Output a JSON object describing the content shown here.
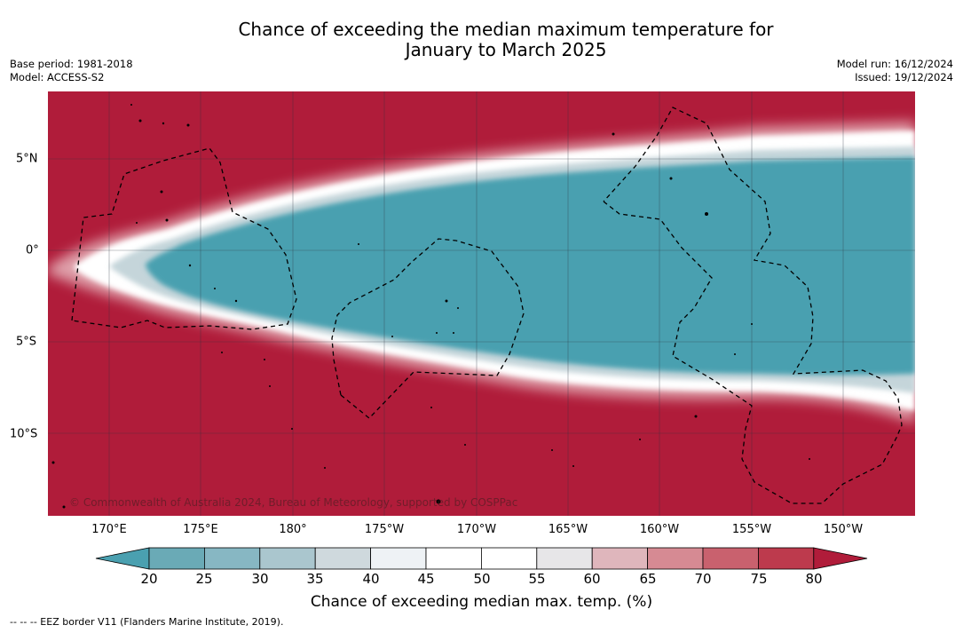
{
  "title": {
    "line1": "Chance of exceeding the median maximum temperature for",
    "line2": "January to March 2025"
  },
  "meta": {
    "base_period": "Base period: 1981-2018",
    "model": "Model: ACCESS-S2",
    "model_run": "Model run: 16/12/2024",
    "issued": "Issued: 19/12/2024"
  },
  "map": {
    "longitude_ticks": [
      "170°E",
      "175°E",
      "180°",
      "175°W",
      "170°W",
      "165°W",
      "160°W",
      "155°W",
      "150°W"
    ],
    "latitude_ticks": [
      "5°N",
      "0°",
      "5°S",
      "10°S"
    ],
    "copyright": "© Commonwealth of Australia 2024, Bureau of Meteorology, supported by COSPPac",
    "colors": {
      "warm": "#b01c3a",
      "cool": "#4aa0b0",
      "border": "#000000"
    }
  },
  "colorbar": {
    "labels": [
      "20",
      "25",
      "30",
      "35",
      "40",
      "45",
      "50",
      "55",
      "60",
      "65",
      "70",
      "75",
      "80"
    ],
    "colors": [
      "#4aa0b0",
      "#6aaab6",
      "#87b7c3",
      "#aac6ce",
      "#cfd9dd",
      "#eef2f5",
      "#ffffff",
      "#ffffff",
      "#e7e6e8",
      "#dfb6bc",
      "#d68a93",
      "#c9616e",
      "#bd3a4d",
      "#b01c3a"
    ],
    "title": "Chance of exceeding median max. temp. (%)"
  },
  "legend_note": "--  --  -- EEZ border V11 (Flanders Marine Institute, 2019)."
}
